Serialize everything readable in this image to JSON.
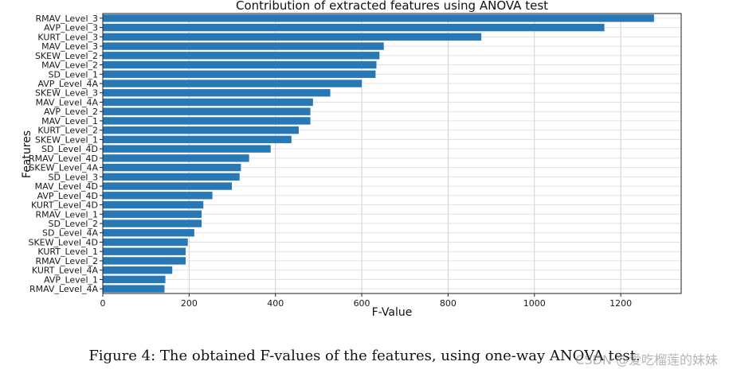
{
  "chart_data": {
    "type": "bar",
    "orientation": "horizontal",
    "title": "Contribution of extracted features using ANOVA test",
    "xlabel": "F-Value",
    "ylabel": "Features",
    "xlim": [
      0,
      1340
    ],
    "xticks": [
      0,
      200,
      400,
      600,
      800,
      1000,
      1200
    ],
    "grid": true,
    "bar_color": "#2878b5",
    "categories": [
      "RMAV_Level_3",
      "AVP_Level_3",
      "KURT_Level_3",
      "MAV_Level_3",
      "SKEW_Level_2",
      "MAV_Level_2",
      "SD_Level_1",
      "AVP_Level_4A",
      "SKEW_Level_3",
      "MAV_Level_4A",
      "AVP_Level_2",
      "MAV_Level_1",
      "KURT_Level_2",
      "SKEW_Level_1",
      "SD_Level_4D",
      "RMAV_Level_4D",
      "SKEW_Level_4A",
      "SD_Level_3",
      "MAV_Level_4D",
      "AVP_Level_4D",
      "KURT_Level_4D",
      "RMAV_Level_1",
      "SD_Level_2",
      "SD_Level_4A",
      "SKEW_Level_4D",
      "KURT_Level_1",
      "RMAV_Level_2",
      "KURT_Level_4A",
      "AVP_Level_1",
      "RMAV_Level_4A"
    ],
    "values": [
      1277,
      1162,
      877,
      651,
      641,
      634,
      632,
      600,
      527,
      487,
      481,
      481,
      454,
      437,
      389,
      339,
      320,
      317,
      299,
      254,
      233,
      229,
      229,
      212,
      197,
      192,
      192,
      161,
      145,
      143
    ]
  },
  "caption": "Figure 4: The obtained F-values of the features, using one-way ANOVA test.",
  "watermark": "CSDN @爱吃榴莲的妹妹"
}
